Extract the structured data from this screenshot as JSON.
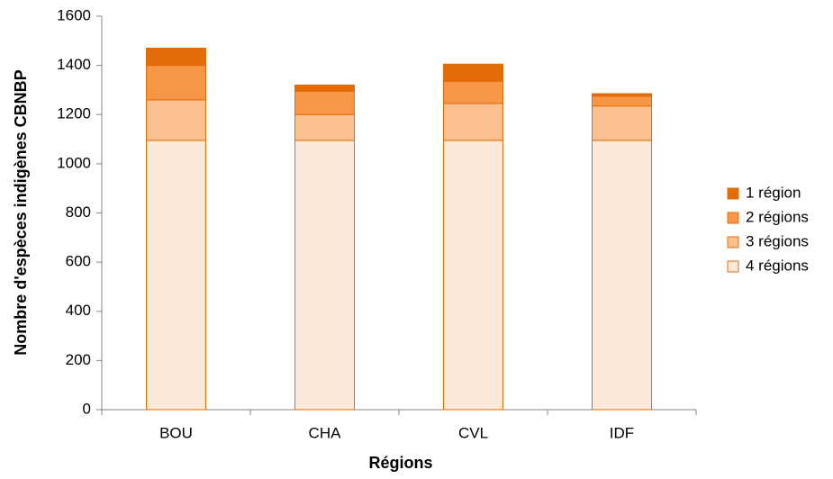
{
  "chart_data": {
    "type": "stacked-bar",
    "x_label": "Régions",
    "y_label": "Nombre d'espèces indigènes CBNBP",
    "categories": [
      "BOU",
      "CHA",
      "CVL",
      "IDF"
    ],
    "series": [
      {
        "name": "4 régions",
        "color": "#fde9d9",
        "values": [
          1095,
          1095,
          1095,
          1095
        ]
      },
      {
        "name": "3 régions",
        "color": "#fac090",
        "values": [
          165,
          105,
          150,
          140
        ]
      },
      {
        "name": "2 régions",
        "color": "#f79646",
        "values": [
          140,
          95,
          90,
          40
        ]
      },
      {
        "name": "1 région",
        "color": "#e36c09",
        "values": [
          70,
          25,
          70,
          10
        ]
      }
    ],
    "ylim": [
      0,
      1600
    ],
    "yticks": [
      0,
      200,
      400,
      600,
      800,
      1000,
      1200,
      1400,
      1600
    ],
    "grid": false,
    "legend": "right"
  }
}
